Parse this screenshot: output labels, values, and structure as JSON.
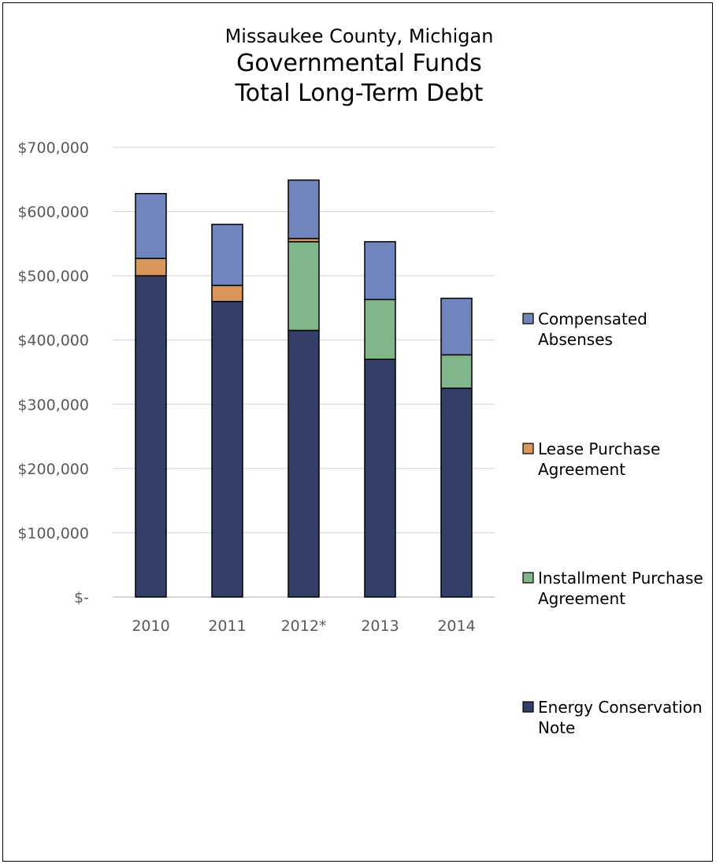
{
  "chart_data": {
    "type": "bar",
    "stacked": true,
    "title_lines": [
      "Missaukee County, Michigan",
      "Governmental Funds",
      "Total Long-Term Debt"
    ],
    "categories": [
      "2010",
      "2011",
      "2012*",
      "2013",
      "2014"
    ],
    "ylim": [
      0,
      700000
    ],
    "y_ticks": [
      {
        "value": 0,
        "label": "$-"
      },
      {
        "value": 100000,
        "label": "$100,000"
      },
      {
        "value": 200000,
        "label": "$200,000"
      },
      {
        "value": 300000,
        "label": "$300,000"
      },
      {
        "value": 400000,
        "label": "$400,000"
      },
      {
        "value": 500000,
        "label": "$500,000"
      },
      {
        "value": 600000,
        "label": "$600,000"
      },
      {
        "value": 700000,
        "label": "$700,000"
      }
    ],
    "grid": true,
    "legend_position": "right",
    "series": [
      {
        "name": "Energy Conservation Note",
        "legend_lines": [
          "Energy Conservation",
          "Note"
        ],
        "color": "#333f68",
        "values": [
          500000,
          460000,
          415000,
          370000,
          325000
        ]
      },
      {
        "name": "Installment Purchase Agreement",
        "legend_lines": [
          "Installment Purchase",
          "Agreement"
        ],
        "color": "#80b78a",
        "values": [
          0,
          0,
          138000,
          93000,
          52000
        ]
      },
      {
        "name": "Lease Purchase Agreement",
        "legend_lines": [
          "Lease Purchase",
          "Agreement"
        ],
        "color": "#d9975b",
        "values": [
          27000,
          25000,
          5000,
          0,
          0
        ]
      },
      {
        "name": "Compensated Absenses",
        "legend_lines": [
          "Compensated",
          "Absenses"
        ],
        "color": "#7084bd",
        "values": [
          101000,
          95000,
          91000,
          90000,
          88000
        ]
      }
    ]
  }
}
